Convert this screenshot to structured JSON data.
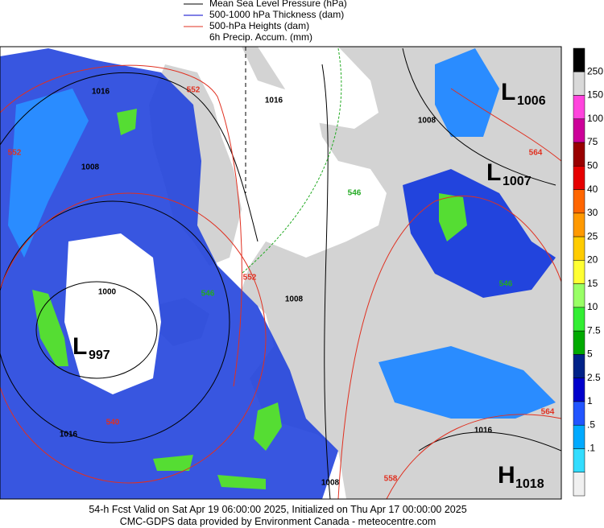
{
  "legend": [
    "Mean Sea Level Pressure (hPa)",
    "500-1000 hPa Thickness (dam)",
    "500-hPa Heights (dam)",
    "6h Precip. Accum. (mm)"
  ],
  "colorbar": [
    "250",
    "150",
    "100",
    "75",
    "50",
    "40",
    "30",
    "25",
    "20",
    "15",
    "10",
    "7.5",
    "5",
    "2.5",
    "1",
    ".5",
    ".1"
  ],
  "centers": [
    {
      "letter": "L",
      "value": "1006"
    },
    {
      "letter": "L",
      "value": "1007"
    },
    {
      "letter": "L",
      "value": "997"
    },
    {
      "letter": "H",
      "value": "1018"
    }
  ],
  "contour_labels": [
    "1016",
    "552",
    "1016",
    "552",
    "1008",
    "1000",
    "546",
    "552",
    "1008",
    "1008",
    "564",
    "546",
    "546",
    "540",
    "1016",
    "1016",
    "564",
    "1008",
    "558"
  ],
  "footer": [
    "54-h Fcst Valid on Sat Apr 19 06:00:00 2025, Initialized on Thu Apr 17 00:00:00 2025",
    "CMC-GDPS data provided by Environment Canada - meteocentre.com"
  ]
}
